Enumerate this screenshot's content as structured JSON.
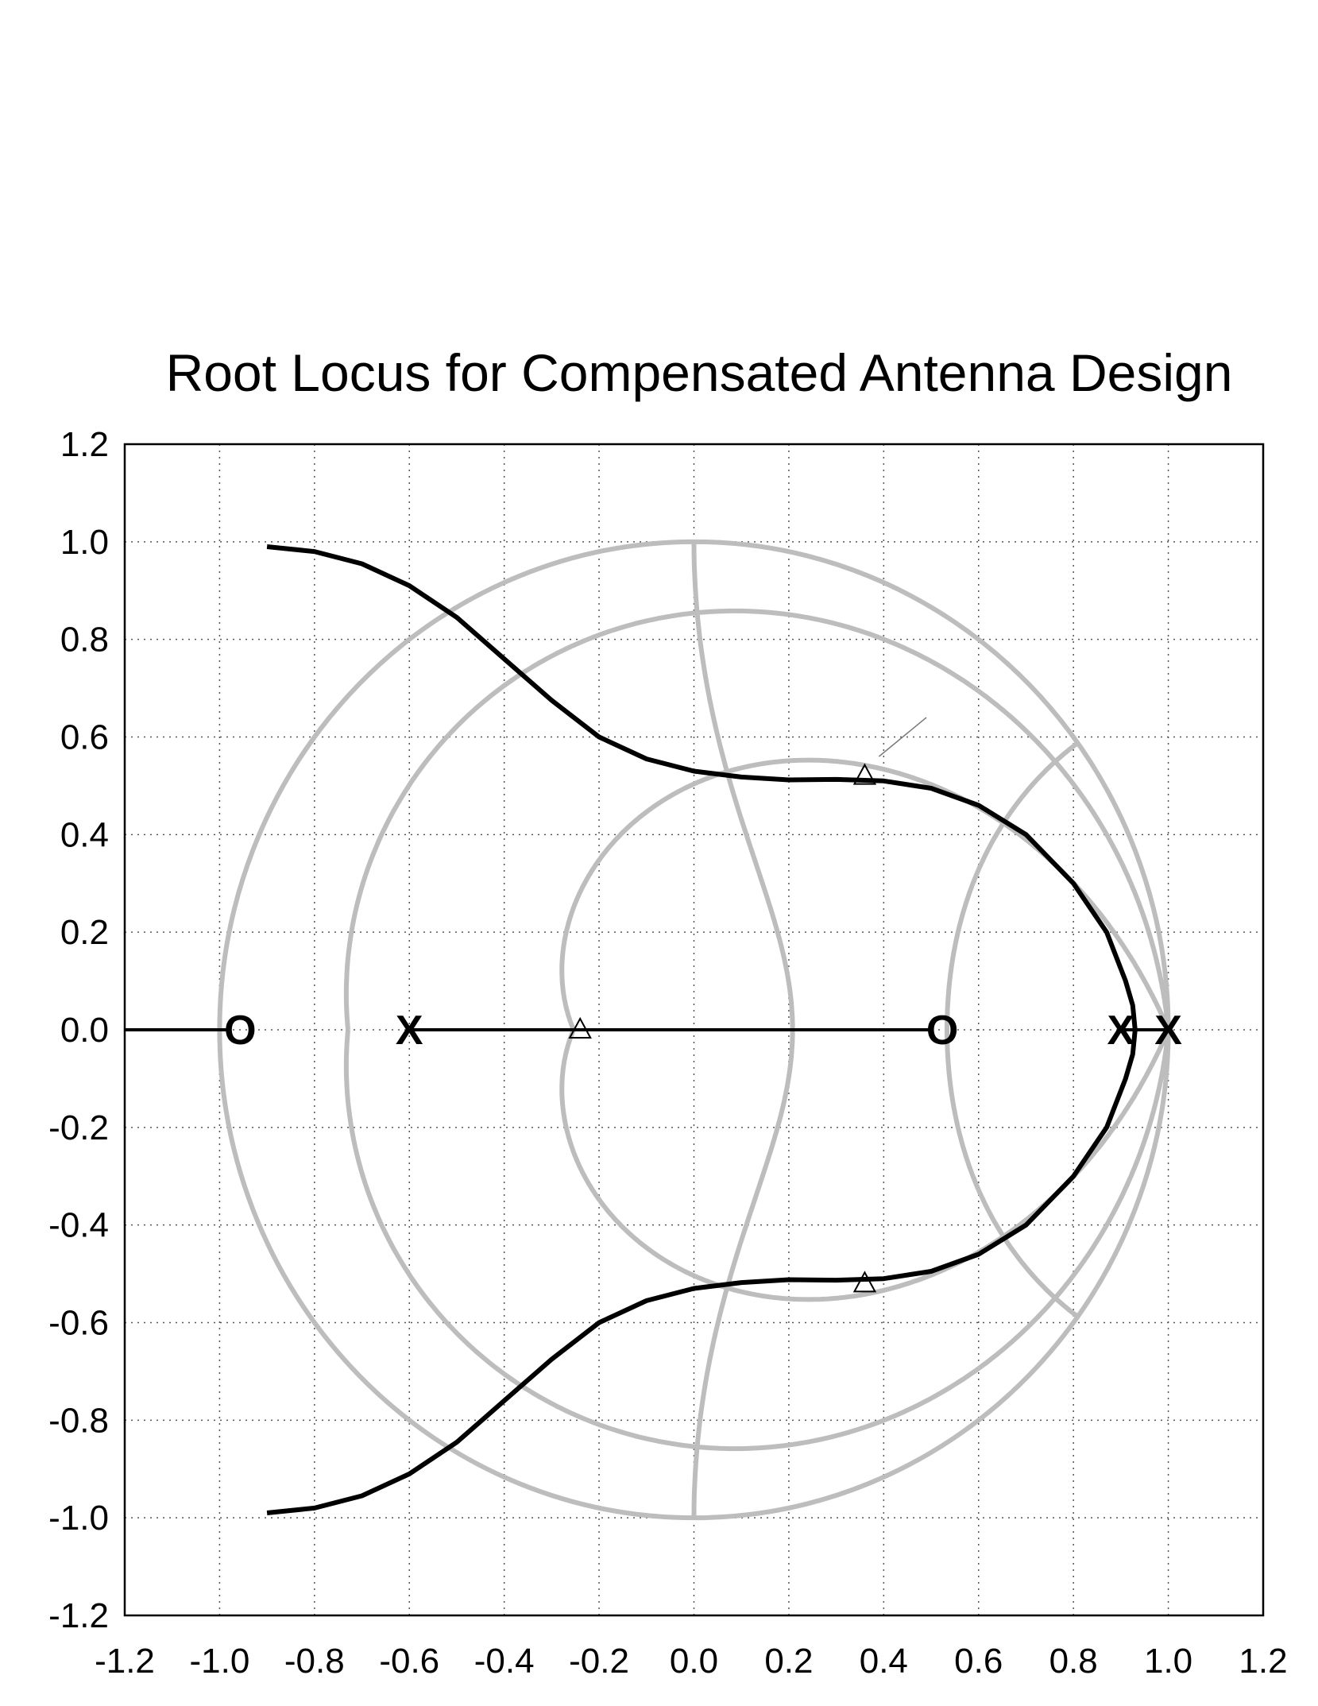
{
  "chart_data": {
    "type": "line",
    "title": "Root Locus for Compensated Antenna Design",
    "xlabel": "",
    "ylabel": "",
    "xlim": [
      -1.2,
      1.2
    ],
    "ylim": [
      -1.2,
      1.2
    ],
    "xticks": [
      "-1.2",
      "-1.0",
      "-0.8",
      "-0.6",
      "-0.4",
      "-0.2",
      "0.0",
      "0.2",
      "0.4",
      "0.6",
      "0.8",
      "1.0",
      "1.2"
    ],
    "yticks": [
      "1.2",
      "1.0",
      "0.8",
      "0.6",
      "0.4",
      "0.2",
      "0.0",
      "-0.2",
      "-0.4",
      "-0.6",
      "-0.8",
      "-1.0",
      "-1.2"
    ],
    "grid": true,
    "grid_style": "dotted",
    "colors": {
      "locus": "#000000",
      "grid_curves": "#bdbdbd",
      "axes": "#000000"
    },
    "poles": [
      {
        "x": -0.6,
        "y": 0.0,
        "label": "X"
      },
      {
        "x": 0.9,
        "y": 0.0,
        "label": "X"
      },
      {
        "x": 1.0,
        "y": 0.0,
        "label": "X"
      }
    ],
    "zeros": [
      {
        "x": -0.98,
        "y": 0.0,
        "label": "O"
      },
      {
        "x": 0.5,
        "y": 0.0,
        "label": "O"
      }
    ],
    "closed_loop_poles": [
      {
        "x": 0.36,
        "y": 0.52
      },
      {
        "x": 0.36,
        "y": -0.52
      },
      {
        "x": -0.24,
        "y": 0.0
      }
    ],
    "series": [
      {
        "points": [
          [
            -0.9,
            0.99
          ],
          [
            -0.8,
            0.98
          ],
          [
            -0.7,
            0.955
          ],
          [
            -0.6,
            0.91
          ],
          [
            -0.5,
            0.845
          ],
          [
            -0.4,
            0.76
          ],
          [
            -0.3,
            0.675
          ],
          [
            -0.2,
            0.6
          ],
          [
            -0.1,
            0.555
          ],
          [
            0.0,
            0.53
          ],
          [
            0.1,
            0.518
          ],
          [
            0.2,
            0.512
          ],
          [
            0.3,
            0.513
          ],
          [
            0.4,
            0.51
          ],
          [
            0.5,
            0.495
          ],
          [
            0.6,
            0.46
          ],
          [
            0.7,
            0.4
          ],
          [
            0.8,
            0.3
          ],
          [
            0.87,
            0.2
          ],
          [
            0.91,
            0.1
          ],
          [
            0.925,
            0.05
          ],
          [
            0.93,
            0.0
          ],
          [
            0.925,
            -0.05
          ],
          [
            0.91,
            -0.1
          ],
          [
            0.87,
            -0.2
          ],
          [
            0.8,
            -0.3
          ],
          [
            0.7,
            -0.4
          ],
          [
            0.6,
            -0.46
          ],
          [
            0.5,
            -0.495
          ],
          [
            0.4,
            -0.51
          ],
          [
            0.3,
            -0.513
          ],
          [
            0.2,
            -0.512
          ],
          [
            0.1,
            -0.518
          ],
          [
            0.0,
            -0.53
          ],
          [
            -0.1,
            -0.555
          ],
          [
            -0.2,
            -0.6
          ],
          [
            -0.3,
            -0.675
          ],
          [
            -0.4,
            -0.76
          ],
          [
            -0.5,
            -0.845
          ],
          [
            -0.6,
            -0.91
          ],
          [
            -0.7,
            -0.955
          ],
          [
            -0.8,
            -0.98
          ],
          [
            -0.9,
            -0.99
          ]
        ]
      },
      {
        "points": [
          [
            -1.2,
            0.0
          ],
          [
            -0.98,
            0.0
          ]
        ]
      },
      {
        "points": [
          [
            -0.6,
            0.0
          ],
          [
            0.5,
            0.0
          ]
        ]
      },
      {
        "points": [
          [
            0.9,
            0.0
          ],
          [
            1.0,
            0.0
          ]
        ]
      }
    ],
    "annotations": [
      {
        "type": "leader-line",
        "from": [
          0.39,
          0.56
        ],
        "to": [
          0.49,
          0.64
        ]
      }
    ]
  }
}
